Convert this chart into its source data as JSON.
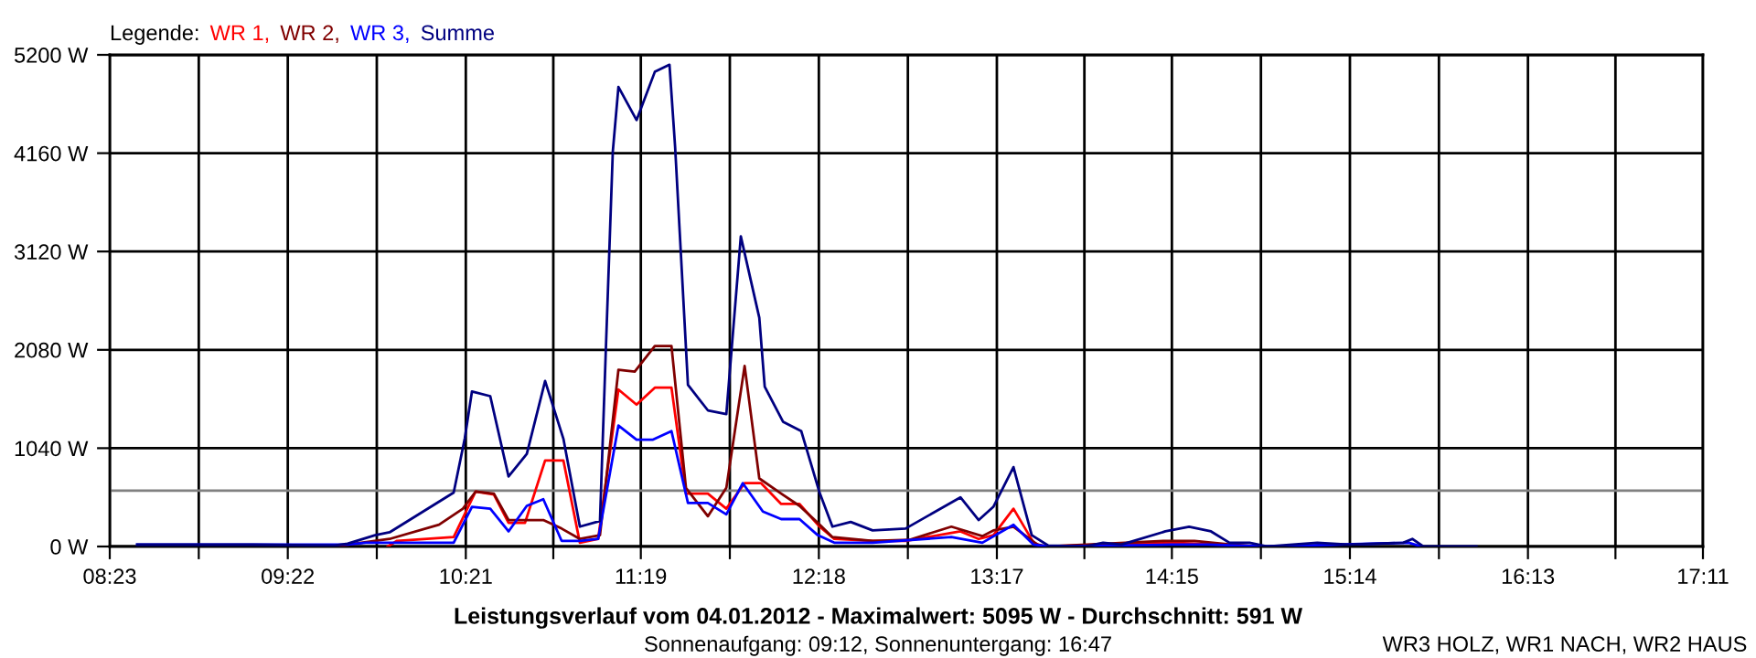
{
  "chart_data": {
    "type": "line",
    "title": "Leistungsverlauf vom 04.01.2012 - Maximalwert: 5095 W - Durchschnitt: 591 W",
    "subtitle": "Sonnenaufgang: 09:12, Sonnenuntergang: 16:47",
    "legend_title": "Legende:",
    "legend": "top left",
    "annotations": [
      "WR3 HOLZ, WR1 NACH, WR2 HAUS"
    ],
    "grid": true,
    "xlim": [
      8.3833,
      17.1833
    ],
    "xticks": [
      {
        "value": 8.3833,
        "label": "08:23"
      },
      {
        "value": 8.875,
        "label": null
      },
      {
        "value": 9.3667,
        "label": "09:22"
      },
      {
        "value": 9.8583,
        "label": null
      },
      {
        "value": 10.35,
        "label": "10:21"
      },
      {
        "value": 10.8333,
        "label": null
      },
      {
        "value": 11.3167,
        "label": "11:19"
      },
      {
        "value": 11.8083,
        "label": null
      },
      {
        "value": 12.3,
        "label": "12:18"
      },
      {
        "value": 12.7917,
        "label": null
      },
      {
        "value": 13.2833,
        "label": "13:17"
      },
      {
        "value": 13.7667,
        "label": null
      },
      {
        "value": 14.25,
        "label": "14:15"
      },
      {
        "value": 14.7417,
        "label": null
      },
      {
        "value": 15.2333,
        "label": "15:14"
      },
      {
        "value": 15.725,
        "label": null
      },
      {
        "value": 16.2167,
        "label": "16:13"
      },
      {
        "value": 16.7,
        "label": null
      },
      {
        "value": 17.1833,
        "label": "17:11"
      }
    ],
    "ylim": [
      0,
      5200
    ],
    "yticks": [
      {
        "value": 0,
        "label": "0 W"
      },
      {
        "value": 1040,
        "label": "1040 W"
      },
      {
        "value": 2080,
        "label": "2080 W"
      },
      {
        "value": 3120,
        "label": "3120 W"
      },
      {
        "value": 4160,
        "label": "4160 W"
      },
      {
        "value": 5200,
        "label": "5200 W"
      }
    ],
    "ref_lines": [
      {
        "axis": "y",
        "value": 591,
        "color": "#808080"
      }
    ],
    "series": [
      {
        "name": "WR 1,",
        "color": "#ff0000",
        "x": [
          9.919,
          9.97,
          10.283,
          10.404,
          10.505,
          10.586,
          10.677,
          10.788,
          10.889,
          10.98,
          11.081,
          11.193,
          11.293,
          11.394,
          11.486,
          11.566,
          11.687,
          11.789,
          11.89,
          11.981,
          12.092,
          12.193,
          12.304,
          12.385,
          12.597,
          12.779,
          13.082,
          13.183,
          13.264,
          13.375,
          13.486,
          13.537,
          14.244,
          14.517,
          14.719
        ],
        "values": [
          0,
          60,
          100,
          580,
          550,
          250,
          250,
          910,
          910,
          40,
          80,
          1660,
          1500,
          1680,
          1680,
          560,
          560,
          400,
          670,
          670,
          450,
          450,
          210,
          80,
          60,
          60,
          160,
          80,
          120,
          400,
          40,
          0,
          40,
          20,
          0
        ]
      },
      {
        "name": "WR 2,",
        "color": "#800000",
        "x": [
          9.626,
          9.929,
          10.202,
          10.334,
          10.404,
          10.505,
          10.586,
          10.778,
          10.879,
          10.98,
          11.091,
          11.193,
          11.283,
          11.394,
          11.486,
          11.566,
          11.687,
          11.789,
          11.89,
          11.971,
          12.092,
          12.193,
          12.294,
          12.375,
          12.597,
          12.799,
          13.032,
          13.203,
          13.264,
          13.375,
          13.507,
          13.567,
          14.214,
          14.375,
          14.578,
          14.75
        ],
        "values": [
          0,
          80,
          230,
          400,
          580,
          560,
          280,
          280,
          190,
          80,
          120,
          1870,
          1850,
          2120,
          2120,
          620,
          320,
          620,
          1910,
          720,
          560,
          430,
          250,
          100,
          60,
          70,
          210,
          110,
          170,
          210,
          20,
          0,
          60,
          60,
          20,
          0
        ]
      },
      {
        "name": "WR 3,",
        "color": "#0000ff",
        "x": [
          8.535,
          9.141,
          9.697,
          9.798,
          10.283,
          10.384,
          10.485,
          10.586,
          10.687,
          10.778,
          10.879,
          10.98,
          11.081,
          11.193,
          11.293,
          11.384,
          11.486,
          11.577,
          11.687,
          11.789,
          11.88,
          11.991,
          12.092,
          12.193,
          12.294,
          12.385,
          12.597,
          13.032,
          13.203,
          13.375,
          13.486,
          13.567,
          14.244,
          14.446,
          14.78,
          15.558,
          15.628
        ],
        "values": [
          20,
          20,
          20,
          40,
          40,
          420,
          400,
          160,
          430,
          500,
          60,
          60,
          80,
          1280,
          1130,
          1130,
          1220,
          460,
          460,
          340,
          670,
          370,
          290,
          290,
          120,
          40,
          40,
          100,
          40,
          230,
          20,
          0,
          20,
          20,
          0,
          40,
          0
        ]
      },
      {
        "name": "Summe",
        "color": "#000080",
        "x": [
          8.535,
          8.838,
          9.141,
          9.172,
          9.626,
          9.697,
          9.849,
          9.929,
          10.283,
          10.344,
          10.384,
          10.485,
          10.586,
          10.687,
          10.788,
          10.889,
          10.98,
          11.091,
          11.122,
          11.162,
          11.193,
          11.293,
          11.394,
          11.475,
          11.506,
          11.577,
          11.687,
          11.789,
          11.869,
          11.971,
          12.001,
          12.102,
          12.203,
          12.304,
          12.375,
          12.476,
          12.597,
          12.779,
          13.082,
          13.183,
          13.264,
          13.375,
          13.476,
          13.567,
          13.769,
          13.87,
          13.971,
          14.214,
          14.345,
          14.466,
          14.568,
          14.679,
          14.78,
          15.053,
          15.225,
          15.528,
          15.578,
          15.639,
          15.932
        ],
        "values": [
          20,
          20,
          20,
          20,
          10,
          30,
          120,
          150,
          570,
          1140,
          1640,
          1590,
          740,
          980,
          1750,
          1140,
          210,
          270,
          2000,
          4180,
          4860,
          4510,
          5020,
          5095,
          4230,
          1710,
          1440,
          1400,
          3280,
          2420,
          1690,
          1320,
          1220,
          570,
          210,
          260,
          170,
          190,
          520,
          280,
          420,
          840,
          120,
          10,
          0,
          40,
          20,
          160,
          210,
          160,
          40,
          40,
          0,
          40,
          20,
          40,
          80,
          0,
          0
        ]
      }
    ]
  }
}
